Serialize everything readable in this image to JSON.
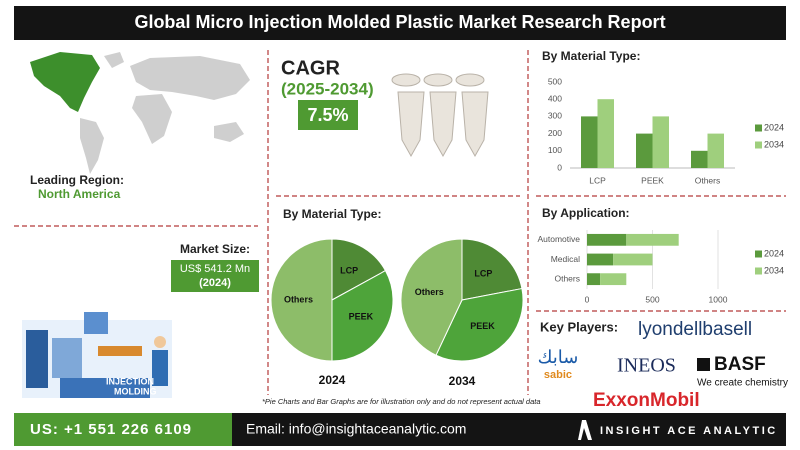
{
  "header": {
    "title": "Global Micro Injection Molded Plastic Market Research Report"
  },
  "region": {
    "label": "Leading Region:",
    "value": "North America"
  },
  "market_size": {
    "label": "Market Size:",
    "value": "US$ 541.2 Mn",
    "year": "(2024)"
  },
  "illustration": {
    "lines": [
      "INJECTION",
      "MOLDING"
    ]
  },
  "cagr": {
    "label": "CAGR",
    "period": "(2025-2034)",
    "value": "7.5%"
  },
  "pie_section": {
    "title": "By Material Type:"
  },
  "chart_data": [
    {
      "type": "pie",
      "title": "2024",
      "categories": [
        "LCP",
        "PEEK",
        "Others"
      ],
      "values": [
        17,
        33,
        50
      ],
      "colors": [
        "#4f8a35",
        "#4ea43a",
        "#8dbd69"
      ]
    },
    {
      "type": "pie",
      "title": "2034",
      "categories": [
        "LCP",
        "PEEK",
        "Others"
      ],
      "values": [
        22,
        35,
        43
      ],
      "colors": [
        "#4f8a35",
        "#4ea43a",
        "#8dbd69"
      ]
    },
    {
      "type": "bar",
      "title": "By Material Type:",
      "categories": [
        "LCP",
        "PEEK",
        "Others"
      ],
      "series": [
        {
          "name": "2024",
          "color": "#5b9a3d",
          "values": [
            300,
            200,
            100
          ]
        },
        {
          "name": "2034",
          "color": "#9fcf7d",
          "values": [
            400,
            300,
            200
          ]
        }
      ],
      "ylim": [
        0,
        500
      ],
      "yticks": [
        0,
        100,
        200,
        300,
        400,
        500
      ],
      "grid": false,
      "legend": "right"
    },
    {
      "type": "stacked_hbar",
      "title": "By Application:",
      "categories": [
        "Automotive",
        "Medical",
        "Others"
      ],
      "series": [
        {
          "name": "2024",
          "color": "#5b9a3d",
          "values": [
            300,
            200,
            100
          ]
        },
        {
          "name": "2034",
          "color": "#9fcf7d",
          "values": [
            400,
            300,
            200
          ]
        }
      ],
      "xlim": [
        0,
        1000
      ],
      "xticks": [
        0,
        500,
        1000
      ],
      "grid": true,
      "legend": "right"
    }
  ],
  "key_players": {
    "title": "Key Players:",
    "lyondellbasell": "lyondellbasell",
    "sabic_arabic": "سابك",
    "sabic": "sabic",
    "ineos": "INEOS",
    "basf": "BASF",
    "basf_tagline": "We create chemistry",
    "exxonmobil": "ExxonMobil"
  },
  "footnote": "*Pie Charts and Bar Graphs are for illustration only and do not represent actual data",
  "footer": {
    "phone": "US: +1 551 226 6109",
    "email": "Email: info@insightaceanalytic.com",
    "brand": "INSIGHT ACE ANALYTIC"
  }
}
